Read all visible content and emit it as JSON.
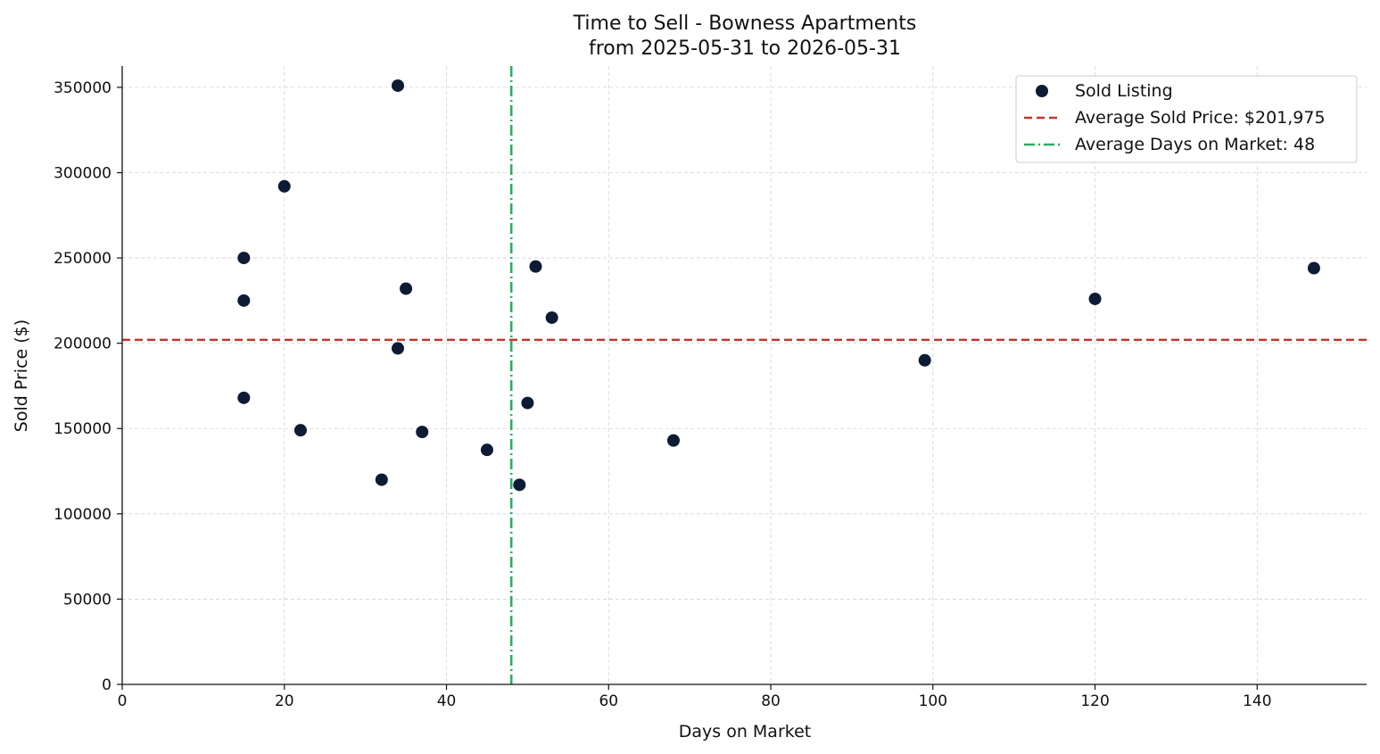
{
  "chart_data": {
    "type": "scatter",
    "title": "Time to Sell - Bowness Apartments",
    "subtitle": "from 2025-05-31 to 2026-05-31",
    "xlabel": "Days on Market",
    "ylabel": "Sold Price ($)",
    "xlim": [
      0,
      153.5
    ],
    "ylim": [
      0,
      362500
    ],
    "x_ticks": [
      0,
      20,
      40,
      60,
      80,
      100,
      120,
      140
    ],
    "x_tick_labels": [
      "0",
      "20",
      "40",
      "60",
      "80",
      "100",
      "120",
      "140"
    ],
    "y_ticks": [
      0,
      50000,
      100000,
      150000,
      200000,
      250000,
      300000,
      350000
    ],
    "y_tick_labels": [
      "0",
      "50000",
      "100000",
      "150000",
      "200000",
      "250000",
      "300000",
      "350000"
    ],
    "grid": true,
    "legend_position": "top-right",
    "series": [
      {
        "name": "Sold Listing",
        "color": "#0d1b35",
        "points": [
          {
            "x": 15,
            "y": 250000
          },
          {
            "x": 15,
            "y": 225000
          },
          {
            "x": 15,
            "y": 168000
          },
          {
            "x": 20,
            "y": 292000
          },
          {
            "x": 22,
            "y": 149000
          },
          {
            "x": 32,
            "y": 120000
          },
          {
            "x": 34,
            "y": 351000
          },
          {
            "x": 34,
            "y": 197000
          },
          {
            "x": 35,
            "y": 232000
          },
          {
            "x": 37,
            "y": 148000
          },
          {
            "x": 45,
            "y": 137500
          },
          {
            "x": 49,
            "y": 117000
          },
          {
            "x": 50,
            "y": 165000
          },
          {
            "x": 51,
            "y": 245000
          },
          {
            "x": 53,
            "y": 215000
          },
          {
            "x": 68,
            "y": 143000
          },
          {
            "x": 99,
            "y": 190000
          },
          {
            "x": 120,
            "y": 226000
          },
          {
            "x": 147,
            "y": 244000
          }
        ]
      }
    ],
    "reference_lines": [
      {
        "name": "Average Sold Price: $201,975",
        "orientation": "horizontal",
        "value": 201975,
        "color": "#c0392b",
        "style": "dashed"
      },
      {
        "name": "Average Days on Market: 48",
        "orientation": "vertical",
        "value": 48,
        "color": "#27ae60",
        "style": "dash-dot"
      }
    ]
  }
}
